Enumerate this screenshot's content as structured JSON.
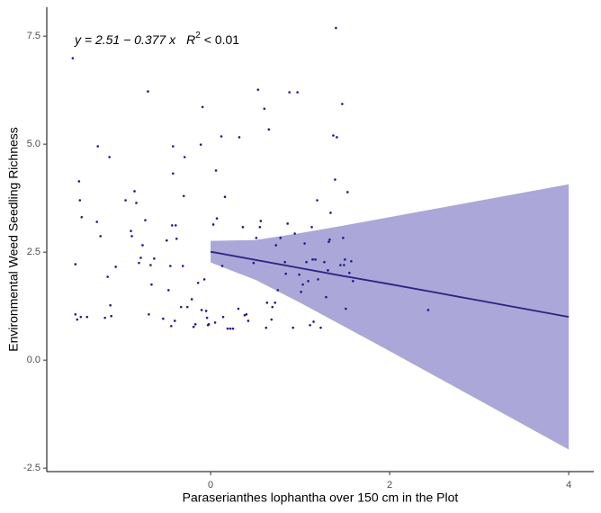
{
  "chart_data": {
    "type": "scatter",
    "xlabel": "Paraserianthes lophantha over 150 cm in the Plot",
    "ylabel": "Environmental Weed Seedling Richness",
    "annotation": {
      "equation": "y = 2.51 − 0.377 x",
      "r": "R",
      "exponent": "2",
      "r_text": "< 0.01"
    },
    "xlim": [
      -1.83,
      4.28
    ],
    "ylim": [
      -2.58,
      8.17
    ],
    "xticks": [
      0,
      2,
      4
    ],
    "yticks": [
      -2.5,
      {
        "value": 0,
        "label": "0.0"
      },
      2.5,
      {
        "value": 5,
        "label": "5.0"
      },
      7.5
    ],
    "color": "#1f1a8a",
    "x": [
      -1.54,
      -1.51,
      -1.47,
      -1.46,
      -1.44,
      -1.49,
      -1.51,
      -1.45,
      -1.38,
      -1.27,
      -1.26,
      -1.23,
      -1.18,
      -1.15,
      -1.13,
      -1.12,
      -1.11,
      -1.06,
      -0.95,
      -0.89,
      -0.88,
      -0.85,
      -0.83,
      -0.8,
      -0.78,
      -0.76,
      -0.73,
      -0.7,
      -0.69,
      -0.67,
      -0.66,
      -0.63,
      -0.53,
      -0.49,
      -0.47,
      -0.45,
      -0.44,
      -0.43,
      -0.42,
      -0.42,
      -0.4,
      -0.39,
      -0.38,
      -0.33,
      -0.31,
      -0.3,
      -0.29,
      -0.26,
      -0.21,
      -0.19,
      -0.17,
      -0.14,
      -0.11,
      -0.1,
      -0.09,
      -0.07,
      -0.05,
      -0.04,
      -0.03,
      -0.02,
      0.03,
      0.05,
      0.06,
      0.07,
      0.12,
      0.13,
      0.14,
      0.16,
      0.19,
      0.22,
      0.25,
      0.31,
      0.32,
      0.36,
      0.38,
      0.4,
      0.42,
      0.48,
      0.51,
      0.53,
      0.55,
      0.56,
      0.6,
      0.62,
      0.63,
      0.65,
      0.68,
      0.69,
      0.72,
      0.73,
      0.75,
      0.78,
      0.83,
      0.84,
      0.86,
      0.88,
      0.92,
      0.94,
      0.97,
      0.99,
      1.01,
      1.03,
      1.05,
      1.07,
      1.09,
      1.11,
      1.13,
      1.14,
      1.15,
      1.17,
      1.19,
      1.2,
      1.23,
      1.27,
      1.29,
      1.31,
      1.32,
      1.33,
      1.34,
      1.37,
      1.39,
      1.4,
      1.41,
      1.45,
      1.47,
      1.48,
      1.49,
      1.5,
      1.51,
      1.53,
      1.55,
      1.57,
      1.59,
      2.43
    ],
    "values": [
      6.99,
      2.22,
      4.14,
      3.7,
      3.31,
      0.94,
      1.06,
      1.0,
      1.0,
      3.2,
      4.95,
      2.87,
      0.98,
      1.93,
      4.7,
      1.27,
      1.02,
      2.16,
      3.7,
      2.99,
      2.87,
      3.91,
      3.64,
      2.25,
      2.37,
      2.66,
      3.24,
      6.22,
      1.06,
      2.2,
      1.75,
      2.35,
      0.96,
      2.77,
      1.62,
      2.18,
      0.79,
      3.12,
      4.95,
      4.32,
      0.91,
      3.12,
      2.81,
      1.23,
      2.18,
      3.8,
      4.7,
      1.23,
      1.41,
      0.77,
      0.83,
      1.79,
      4.99,
      1.16,
      5.86,
      1.87,
      1.14,
      0.98,
      0.81,
      0.83,
      3.14,
      0.87,
      4.39,
      3.28,
      5.18,
      2.18,
      1.0,
      3.78,
      0.73,
      0.73,
      0.73,
      1.19,
      5.16,
      3.08,
      1.04,
      1.06,
      0.91,
      2.25,
      2.83,
      6.26,
      3.08,
      3.22,
      5.82,
      0.75,
      1.33,
      5.34,
      0.94,
      1.23,
      1.33,
      2.66,
      1.62,
      2.83,
      2.27,
      2.0,
      3.16,
      6.2,
      0.75,
      2.93,
      6.2,
      1.98,
      1.58,
      1.75,
      2.7,
      2.27,
      1.83,
      0.81,
      3.08,
      2.33,
      0.89,
      2.33,
      3.7,
      1.87,
      0.75,
      2.27,
      1.46,
      2.08,
      2.74,
      2.79,
      3.41,
      5.2,
      4.18,
      7.69,
      5.16,
      2.2,
      5.93,
      2.83,
      2.2,
      2.33,
      1.19,
      3.89,
      2.02,
      2.29,
      1.83,
      1.16
    ],
    "fit": {
      "color": "#2c2282",
      "band_color": "#aba7d8",
      "x": [
        0,
        0.5,
        1,
        1.5,
        2,
        2.5,
        3,
        3.5,
        4
      ],
      "values": [
        2.51,
        2.32,
        2.13,
        1.94,
        1.76,
        1.57,
        1.38,
        1.19,
        1.0
      ],
      "lower": [
        2.26,
        1.86,
        1.33,
        0.77,
        0.21,
        -0.36,
        -0.93,
        -1.5,
        -2.07
      ],
      "upper": [
        2.76,
        2.78,
        2.94,
        3.12,
        3.31,
        3.5,
        3.69,
        3.88,
        4.07
      ]
    }
  }
}
